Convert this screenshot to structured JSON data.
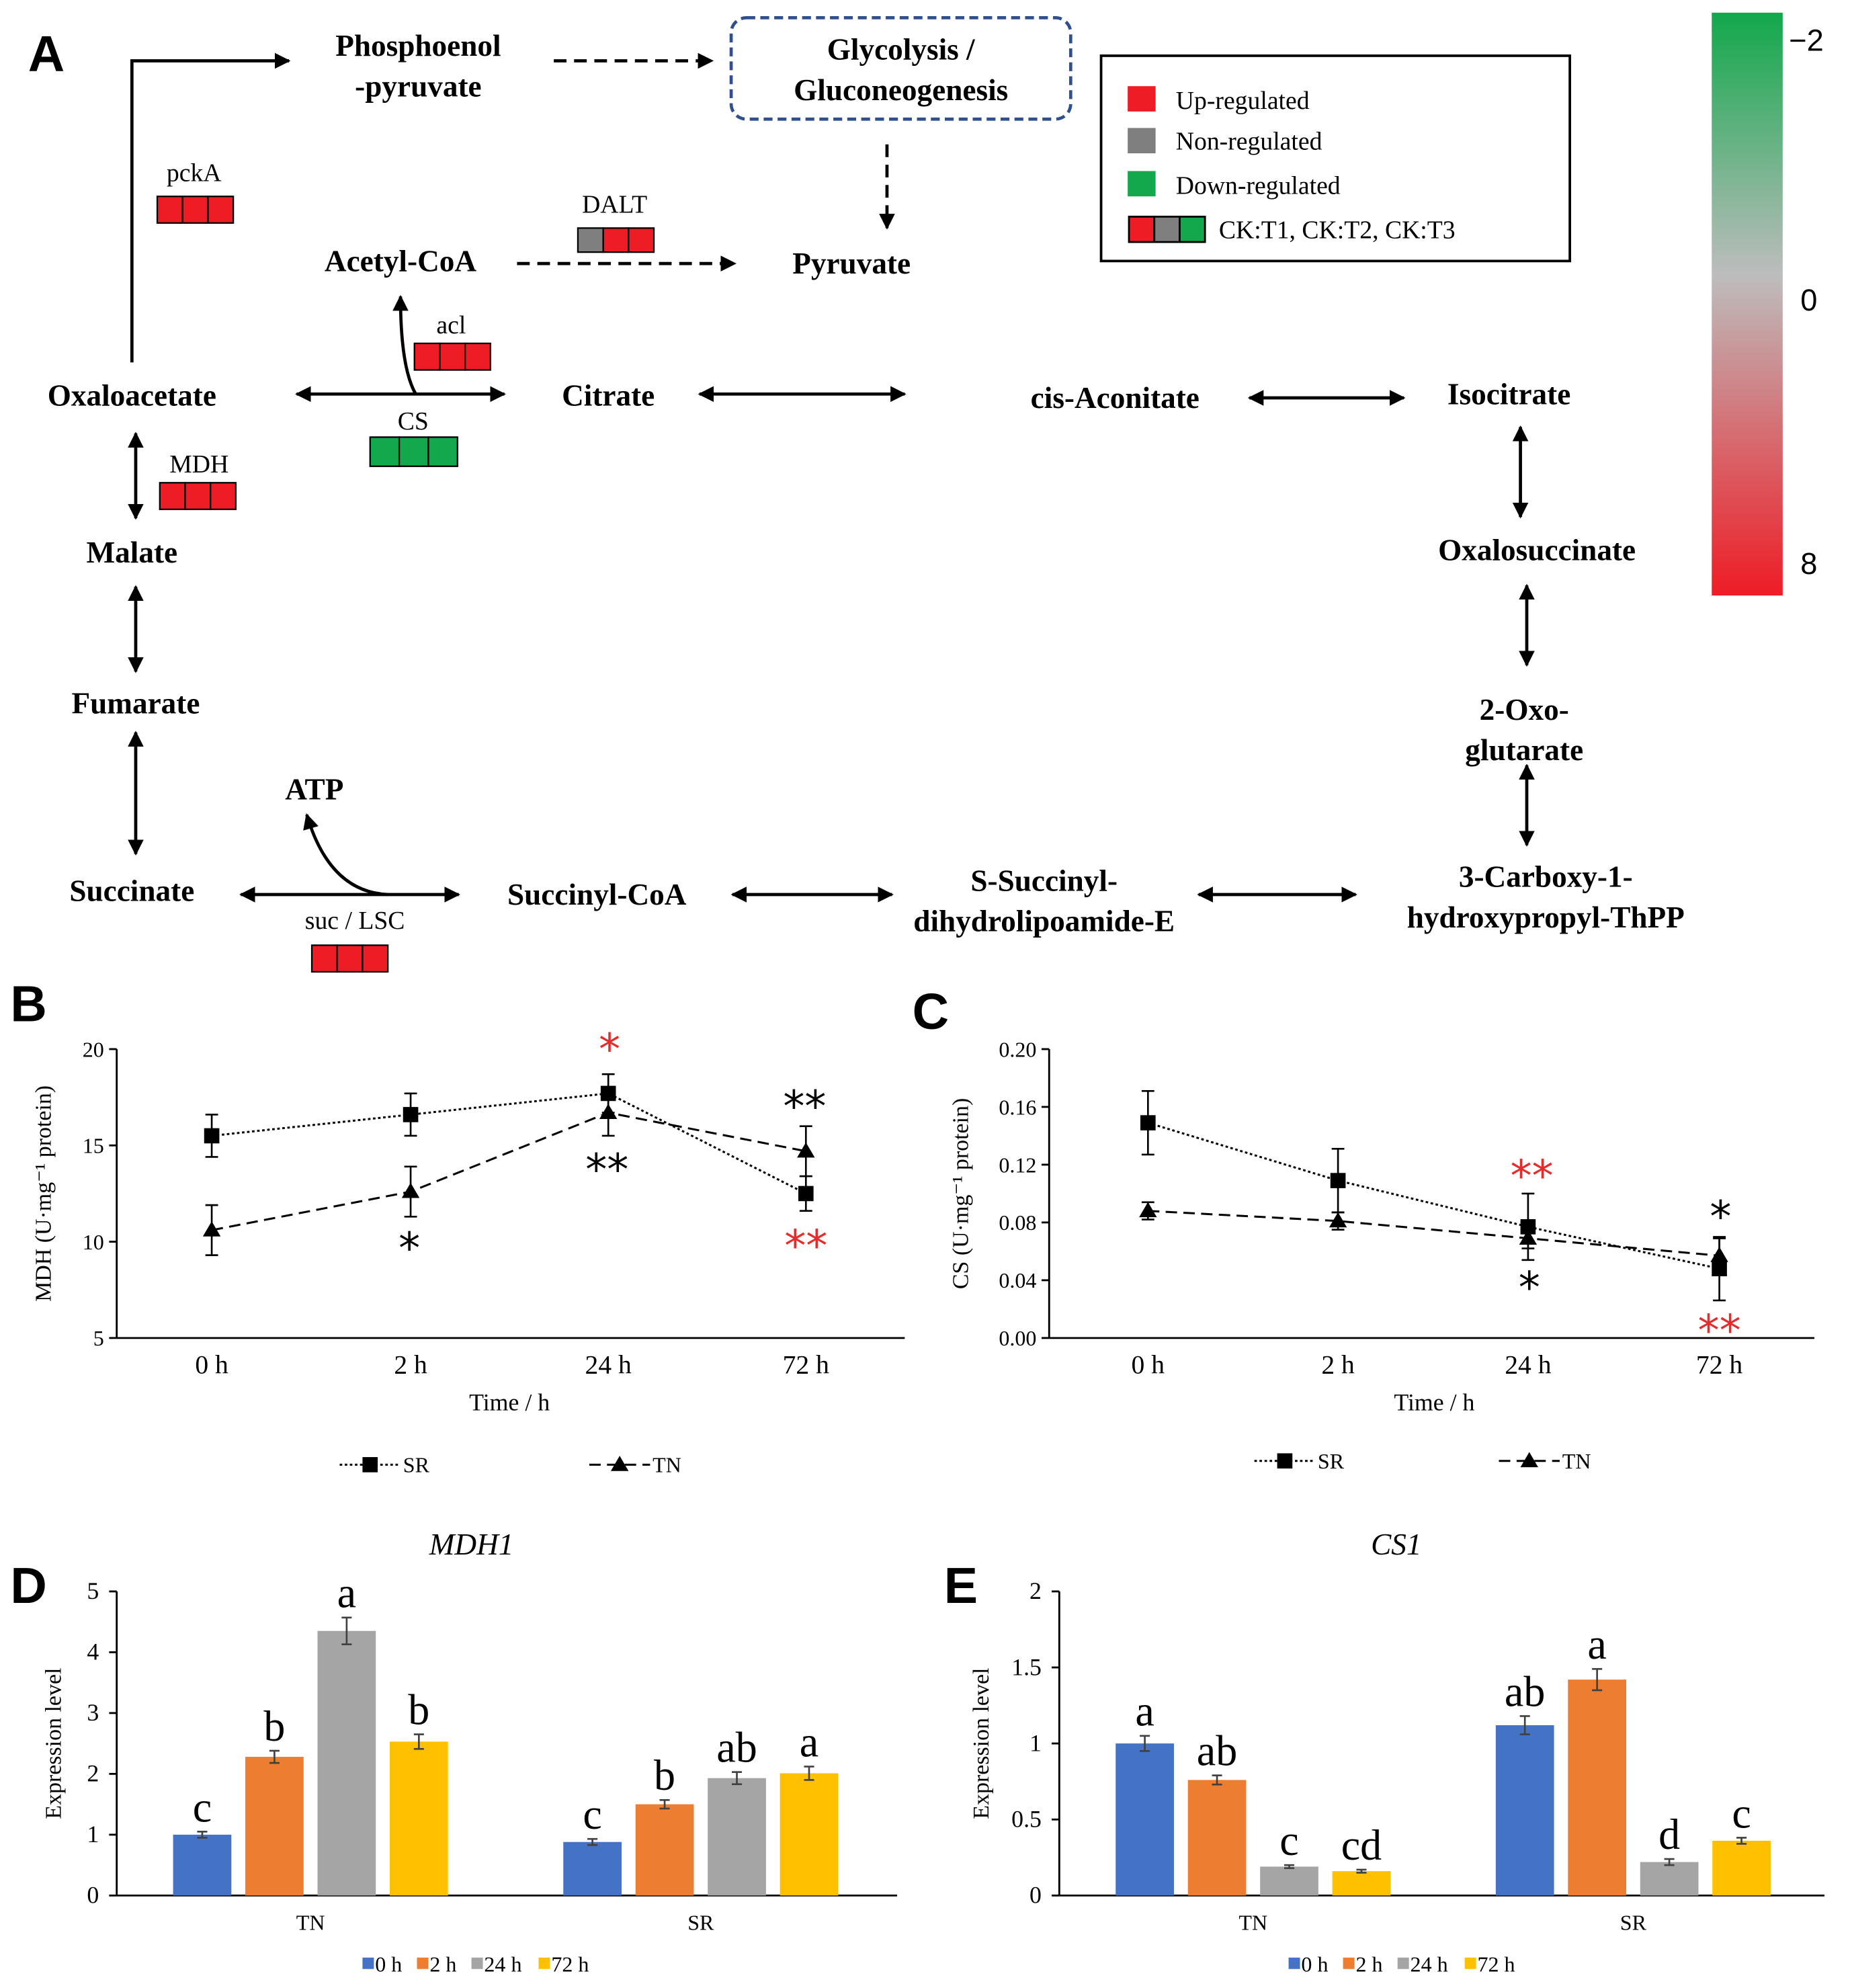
{
  "colors": {
    "up": "#ee1c25",
    "non": "#7f7f7f",
    "down": "#12a84b",
    "blue": "#4472c4",
    "orange": "#ed7d31",
    "gray": "#a5a5a5",
    "yellow": "#ffc000",
    "red_star": "#e52b2b"
  },
  "panels": {
    "a": "A",
    "b": "B",
    "c": "C",
    "d": "D",
    "e": "E"
  },
  "pathway": {
    "metabolites": {
      "pep_1": "Phosphoenol",
      "pep_2": "-pyruvate",
      "gly_1": "Glycolysis /",
      "gly_2": "Gluconeogenesis",
      "acetyl": "Acetyl-CoA",
      "pyruvate": "Pyruvate",
      "oaa": "Oxaloacetate",
      "citrate": "Citrate",
      "cis": "cis-Aconitate",
      "isocitrate": "Isocitrate",
      "malate": "Malate",
      "oxalo": "Oxalosuccinate",
      "fumarate": "Fumarate",
      "oxo_1": "2-Oxo-",
      "oxo_2": "glutarate",
      "atp": "ATP",
      "succinate": "Succinate",
      "succoa": "Succinyl-CoA",
      "ssd_1": "S-Succinyl-",
      "ssd_2": "dihydrolipoamide-E",
      "carb_1": "3-Carboxy-1-",
      "carb_2": "hydroxypropyl-ThPP"
    },
    "enzymes": [
      {
        "label": "pckA",
        "states": [
          "up",
          "up",
          "up"
        ]
      },
      {
        "label": "DALT",
        "states": [
          "non",
          "up",
          "up"
        ]
      },
      {
        "label": "acl",
        "states": [
          "up",
          "up",
          "up"
        ]
      },
      {
        "label": "CS",
        "states": [
          "down",
          "down",
          "down"
        ]
      },
      {
        "label": "MDH",
        "states": [
          "up",
          "up",
          "up"
        ]
      },
      {
        "label": "suc / LSC",
        "states": [
          "up",
          "up",
          "up"
        ]
      }
    ],
    "legend": {
      "up": "Up-regulated",
      "non": "Non-regulated",
      "down": "Down-regulated",
      "comparisons": "CK:T1, CK:T2, CK:T3"
    },
    "colorbar": {
      "top": "−2",
      "mid": "0",
      "bottom": "8"
    }
  },
  "chart_data": [
    {
      "panel": "B",
      "type": "line",
      "title": "",
      "xlabel": "Time / h",
      "ylabel": "MDH  (U·mg⁻¹ protein)",
      "categories": [
        "0 h",
        "2 h",
        "24 h",
        "72 h"
      ],
      "ylim": [
        5,
        20
      ],
      "yticks": [
        "5",
        "10",
        "15",
        "20"
      ],
      "series": [
        {
          "name": "SR",
          "values": [
            15.5,
            16.6,
            17.7,
            12.5
          ],
          "errors": [
            1.1,
            1.1,
            1.0,
            0.9
          ]
        },
        {
          "name": "TN",
          "values": [
            10.6,
            12.6,
            16.7,
            14.7
          ],
          "errors": [
            1.3,
            1.3,
            1.2,
            1.3
          ]
        }
      ],
      "annotations": [
        "*",
        "**",
        "**",
        "*",
        "**"
      ]
    },
    {
      "panel": "C",
      "type": "line",
      "title": "",
      "xlabel": "Time / h",
      "ylabel": "CS  (U·mg⁻¹ protein)",
      "categories": [
        "0 h",
        "2 h",
        "24 h",
        "72 h"
      ],
      "ylim": [
        0,
        0.2
      ],
      "yticks": [
        "0.00",
        "0.04",
        "0.08",
        "0.12",
        "0.16",
        "0.20"
      ],
      "series": [
        {
          "name": "SR",
          "values": [
            0.149,
            0.109,
            0.077,
            0.048
          ],
          "errors": [
            0.022,
            0.022,
            0.023,
            0.022
          ]
        },
        {
          "name": "TN",
          "values": [
            0.088,
            0.081,
            0.069,
            0.057
          ],
          "errors": [
            0.006,
            0.006,
            0.007,
            0.012
          ]
        }
      ],
      "annotations": [
        "**",
        "*",
        "*",
        "**"
      ]
    },
    {
      "panel": "D",
      "type": "bar",
      "title": "MDH1",
      "xlabel": "",
      "ylabel": "Expression level",
      "categories": [
        "TN",
        "SR"
      ],
      "ylim": [
        0,
        5
      ],
      "yticks": [
        "0",
        "1",
        "2",
        "3",
        "4",
        "5"
      ],
      "series": [
        {
          "name": "0 h",
          "values": [
            1.0,
            0.88
          ],
          "errors": [
            0.05,
            0.05
          ],
          "letters": [
            "c",
            "c"
          ]
        },
        {
          "name": "2 h",
          "values": [
            2.28,
            1.5
          ],
          "errors": [
            0.1,
            0.07
          ],
          "letters": [
            "b",
            "b"
          ]
        },
        {
          "name": "24 h",
          "values": [
            4.35,
            1.93
          ],
          "errors": [
            0.22,
            0.1
          ],
          "letters": [
            "a",
            "ab"
          ]
        },
        {
          "name": "72 h",
          "values": [
            2.53,
            2.01
          ],
          "errors": [
            0.12,
            0.11
          ],
          "letters": [
            "b",
            "a"
          ]
        }
      ]
    },
    {
      "panel": "E",
      "type": "bar",
      "title": "CS1",
      "xlabel": "",
      "ylabel": "Expression level",
      "categories": [
        "TN",
        "SR"
      ],
      "ylim": [
        0,
        2
      ],
      "yticks": [
        "0",
        "0.5",
        "1",
        "1.5",
        "2"
      ],
      "series": [
        {
          "name": "0 h",
          "values": [
            1.0,
            1.12
          ],
          "errors": [
            0.05,
            0.06
          ],
          "letters": [
            "a",
            "ab"
          ]
        },
        {
          "name": "2 h",
          "values": [
            0.76,
            1.42
          ],
          "errors": [
            0.03,
            0.07
          ],
          "letters": [
            "ab",
            "a"
          ]
        },
        {
          "name": "24 h",
          "values": [
            0.19,
            0.22
          ],
          "errors": [
            0.01,
            0.02
          ],
          "letters": [
            "c",
            "d"
          ]
        },
        {
          "name": "72 h",
          "values": [
            0.16,
            0.36
          ],
          "errors": [
            0.01,
            0.02
          ],
          "letters": [
            "cd",
            "c"
          ]
        }
      ]
    }
  ]
}
